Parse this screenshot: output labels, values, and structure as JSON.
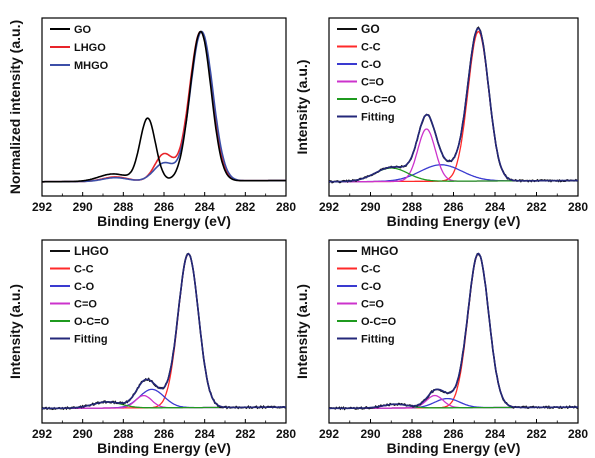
{
  "colors": {
    "GO": "#000000",
    "LHGO": "#e8242a",
    "MHGO": "#3c4fa8",
    "C-C": "#ff2a2a",
    "C-O": "#3a3ad0",
    "C=O": "#cc33cc",
    "O-C=O": "#1f9a1f",
    "Fitting": "#24287a",
    "Data": "#111111"
  },
  "chart_data": [
    {
      "type": "line",
      "xlabel": "Binding Energy (eV)",
      "ylabel": "Normalized intensity (a.u.)",
      "xlim": [
        292,
        280
      ],
      "xticks": [
        "292",
        "290",
        "288",
        "286",
        "284",
        "282",
        "280"
      ],
      "legend_position": "top-left",
      "series": [
        {
          "name": "GO",
          "peaks": [
            [
              284.2,
              1.0,
              0.52
            ],
            [
              286.8,
              0.42,
              0.38
            ],
            [
              288.5,
              0.05,
              0.7
            ]
          ]
        },
        {
          "name": "LHGO",
          "peaks": [
            [
              284.2,
              1.0,
              0.55
            ],
            [
              286.0,
              0.18,
              0.45
            ],
            [
              288.4,
              0.03,
              0.6
            ]
          ]
        },
        {
          "name": "MHGO",
          "peaks": [
            [
              284.15,
              1.0,
              0.55
            ],
            [
              286.0,
              0.12,
              0.5
            ],
            [
              288.4,
              0.025,
              0.6
            ]
          ]
        }
      ]
    },
    {
      "type": "line",
      "xlabel": "Binding Energy (eV)",
      "ylabel": "Intensity (a.u.)",
      "xlim": [
        292,
        280
      ],
      "xticks": [
        "292",
        "290",
        "288",
        "286",
        "284",
        "282",
        "280"
      ],
      "legend_position": "top-left",
      "series": [
        {
          "name": "GO",
          "role": "data"
        },
        {
          "name": "C-C",
          "peak": [
            284.8,
            1.0,
            0.5
          ]
        },
        {
          "name": "C-O",
          "peak": [
            286.6,
            0.11,
            1.0
          ]
        },
        {
          "name": "C=O",
          "peak": [
            287.3,
            0.35,
            0.42
          ]
        },
        {
          "name": "O-C=O",
          "peak": [
            289.0,
            0.09,
            0.8
          ]
        },
        {
          "name": "Fitting",
          "role": "sum"
        }
      ]
    },
    {
      "type": "line",
      "xlabel": "Binding Energy (eV)",
      "ylabel": "Intensity (a.u.)",
      "xlim": [
        292,
        280
      ],
      "xticks": [
        "292",
        "290",
        "288",
        "286",
        "284",
        "282",
        "280"
      ],
      "legend_position": "top-left",
      "series": [
        {
          "name": "LHGO",
          "role": "data"
        },
        {
          "name": "C-C",
          "peak": [
            284.8,
            1.0,
            0.5
          ]
        },
        {
          "name": "C-O",
          "peak": [
            286.6,
            0.12,
            0.6
          ]
        },
        {
          "name": "C=O",
          "peak": [
            287.0,
            0.08,
            0.4
          ]
        },
        {
          "name": "O-C=O",
          "peak": [
            288.8,
            0.04,
            0.7
          ]
        },
        {
          "name": "Fitting",
          "role": "sum"
        }
      ]
    },
    {
      "type": "line",
      "xlabel": "Binding Energy (eV)",
      "ylabel": "Intensity (a.u.)",
      "xlim": [
        292,
        280
      ],
      "xticks": [
        "292",
        "290",
        "288",
        "286",
        "284",
        "282",
        "280"
      ],
      "legend_position": "top-left",
      "series": [
        {
          "name": "MHGO",
          "role": "data"
        },
        {
          "name": "C-C",
          "peak": [
            284.8,
            1.0,
            0.5
          ]
        },
        {
          "name": "C-O",
          "peak": [
            286.3,
            0.06,
            0.6
          ]
        },
        {
          "name": "C=O",
          "peak": [
            286.9,
            0.08,
            0.4
          ]
        },
        {
          "name": "O-C=O",
          "peak": [
            288.8,
            0.025,
            0.6
          ]
        },
        {
          "name": "Fitting",
          "role": "sum"
        }
      ]
    }
  ]
}
